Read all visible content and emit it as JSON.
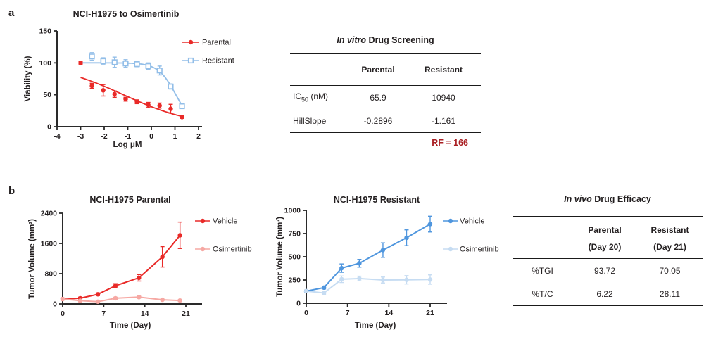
{
  "panels": {
    "a_label": "a",
    "b_label": "b"
  },
  "chart_data": [
    {
      "id": "dose",
      "type": "line",
      "title": "NCI-H1975 to Osimertinib",
      "xlabel": "Log μM",
      "ylabel": "Viability (%)",
      "xlim": [
        -4,
        2
      ],
      "ylim": [
        0,
        150
      ],
      "xticks": [
        -4,
        -3,
        -2,
        -1,
        0,
        1,
        2
      ],
      "yticks": [
        0,
        50,
        100,
        150
      ],
      "legend_position": "right",
      "series": [
        {
          "name": "Parental",
          "color": "#e92a28",
          "marker": "circle-filled",
          "x": [
            -3,
            -2.52,
            -2.04,
            -1.56,
            -1.09,
            -0.61,
            -0.13,
            0.35,
            0.82,
            1.3
          ],
          "y": [
            100,
            64,
            57,
            51,
            43,
            39,
            34,
            33,
            28,
            15
          ],
          "err": [
            2,
            4,
            9,
            5,
            3,
            3,
            4,
            4,
            7,
            2
          ],
          "fit": {
            "model": "hill",
            "ic50_um": 0.0659,
            "hillslope": -0.2896,
            "top": 100,
            "from": -3,
            "to": 1.3
          }
        },
        {
          "name": "Resistant",
          "color": "#92bee8",
          "marker": "square-open",
          "x": [
            -2.52,
            -2.04,
            -1.56,
            -1.09,
            -0.61,
            -0.13,
            0.35,
            0.82,
            1.3
          ],
          "y": [
            110,
            103,
            101,
            99,
            98,
            95,
            88,
            63,
            32
          ],
          "err": [
            6,
            5,
            8,
            6,
            4,
            5,
            7,
            4,
            3
          ],
          "fit": {
            "model": "hill",
            "ic50_um": 10.94,
            "hillslope": -1.161,
            "top": 100,
            "from": -3,
            "to": 1.3
          }
        }
      ]
    },
    {
      "id": "parental",
      "type": "line",
      "title": "NCI-H1975 Parental",
      "xlabel": "Time (Day)",
      "ylabel": "Tumor Volume (mm³)",
      "xlim": [
        0,
        21
      ],
      "ylim": [
        0,
        2400
      ],
      "xticks": [
        0,
        7,
        14,
        21
      ],
      "yticks": [
        0,
        800,
        1600,
        2400
      ],
      "legend_position": "right",
      "series": [
        {
          "name": "Vehicle",
          "color": "#e92a28",
          "marker": "circle-filled",
          "connect": true,
          "x": [
            0,
            3,
            6,
            9,
            13,
            17,
            20
          ],
          "y": [
            130,
            150,
            255,
            480,
            690,
            1245,
            1815
          ],
          "err": [
            15,
            28,
            35,
            55,
            85,
            270,
            350
          ]
        },
        {
          "name": "Osimertinib",
          "color": "#f6a8a3",
          "marker": "circle-filled",
          "connect": true,
          "x": [
            0,
            3,
            6,
            9,
            13,
            17,
            20
          ],
          "y": [
            130,
            85,
            60,
            150,
            180,
            110,
            90
          ],
          "err": [
            12,
            30,
            15,
            25,
            25,
            18,
            25
          ]
        }
      ]
    },
    {
      "id": "resistant",
      "type": "line",
      "title": "NCI-H1975 Resistant",
      "xlabel": "Time (Day)",
      "ylabel": "Tumor Volume (mm³)",
      "xlim": [
        0,
        21
      ],
      "ylim": [
        0,
        1000
      ],
      "xticks": [
        0,
        7,
        14,
        21
      ],
      "yticks": [
        0,
        250,
        500,
        750,
        1000
      ],
      "legend_position": "right",
      "series": [
        {
          "name": "Vehicle",
          "color": "#4f96de",
          "marker": "circle-filled",
          "connect": true,
          "x": [
            0,
            3,
            6,
            9,
            13,
            17,
            21
          ],
          "y": [
            130,
            168,
            378,
            430,
            572,
            705,
            852
          ],
          "err": [
            10,
            15,
            45,
            42,
            78,
            85,
            85
          ]
        },
        {
          "name": "Osimertinib",
          "color": "#c6dcf2",
          "marker": "circle-filled",
          "connect": true,
          "x": [
            0,
            3,
            6,
            9,
            13,
            17,
            21
          ],
          "y": [
            130,
            110,
            258,
            266,
            250,
            252,
            255
          ],
          "err": [
            8,
            15,
            35,
            25,
            32,
            45,
            50
          ]
        }
      ]
    }
  ],
  "invitro_table": {
    "title_italic": "In vitro",
    "title_rest": " Drug Screening",
    "col_headers": [
      "Parental",
      "Resistant"
    ],
    "rows": [
      {
        "label_main": "IC",
        "label_sub": "50",
        "label_rest": " (nM)",
        "values": [
          "65.9",
          "10940"
        ]
      },
      {
        "label_main": "HillSlope",
        "values": [
          "-0.2896",
          "-1.161"
        ]
      }
    ],
    "footnote": "RF = 166",
    "footnote_color": "#a91e22"
  },
  "invivo_table": {
    "title_italic": "In vivo",
    "title_rest": " Drug Efficacy",
    "col_headers": [
      {
        "line1": "Parental",
        "line2": "(Day 20)"
      },
      {
        "line1": "Resistant",
        "line2": "(Day 21)"
      }
    ],
    "rows": [
      {
        "label": "%TGI",
        "values": [
          "93.72",
          "70.05"
        ]
      },
      {
        "label": "%T/C",
        "values": [
          "6.22",
          "28.11"
        ]
      }
    ]
  }
}
